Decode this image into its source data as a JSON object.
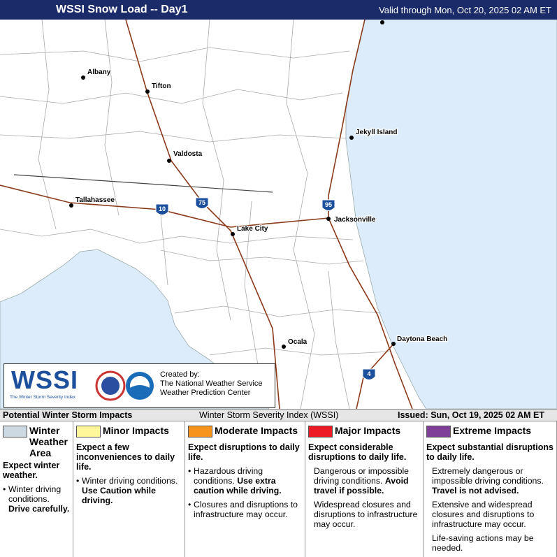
{
  "header": {
    "title": "WSSI Snow Load -- Day1",
    "valid": "Valid through Mon, Oct 20, 2025 02 AM ET"
  },
  "map": {
    "cities": [
      "Albany",
      "Tifton",
      "Valdosta",
      "Jekyll Island",
      "Tallahassee",
      "Lake City",
      "Jacksonville",
      "Ocala",
      "Daytona Beach"
    ],
    "interstates": [
      "10",
      "75",
      "95",
      "4"
    ]
  },
  "logo": {
    "wssi": "WSSI",
    "subtitle": "The Winter Storm Severity Index",
    "created_by": "Created by:",
    "org1": "The National Weather Service",
    "org2": "Weather Prediction Center"
  },
  "status_bar": {
    "left": "Potential Winter Storm Impacts",
    "center": "Winter Storm Severity Index (WSSI)",
    "right": "Issued: Sun, Oct 19, 2025 02 AM ET"
  },
  "legend": [
    {
      "title": "Winter Weather Area",
      "color": "#ccd9e2",
      "headline": "Expect winter weather.",
      "bullets": true,
      "items": [
        {
          "text": "Winter driving conditions.",
          "bold": "Drive carefully."
        }
      ]
    },
    {
      "title": "Minor Impacts",
      "color": "#fff799",
      "headline": "Expect a few inconveniences to daily life.",
      "bullets": true,
      "items": [
        {
          "text": "Winter driving conditions.",
          "bold": "Use Caution while driving."
        }
      ]
    },
    {
      "title": "Moderate Impacts",
      "color": "#f7941d",
      "headline": "Expect disruptions to daily life.",
      "bullets": true,
      "items": [
        {
          "text": "Hazardous driving conditions.",
          "bold": "Use extra caution while driving."
        },
        {
          "text": "Closures and disruptions to infrastructure may occur."
        }
      ]
    },
    {
      "title": "Major Impacts",
      "color": "#ed1c24",
      "headline": "Expect considerable disruptions to daily life.",
      "bullets": false,
      "items": [
        {
          "text": "Dangerous or impossible driving conditions.",
          "bold": "Avoid travel if possible."
        },
        {
          "text": "Widespread closures and disruptions to infrastructure may occur."
        }
      ]
    },
    {
      "title": "Extreme Impacts",
      "color": "#7f3f98",
      "headline": "Expect substantial disruptions to daily life.",
      "bullets": false,
      "items": [
        {
          "text": "Extremely dangerous or impossible driving conditions.",
          "bold": "Travel is not advised."
        },
        {
          "text": "Extensive and widespread closures and disruptions to infrastructure may occur."
        },
        {
          "text": "Life-saving actions may be needed."
        }
      ]
    }
  ]
}
